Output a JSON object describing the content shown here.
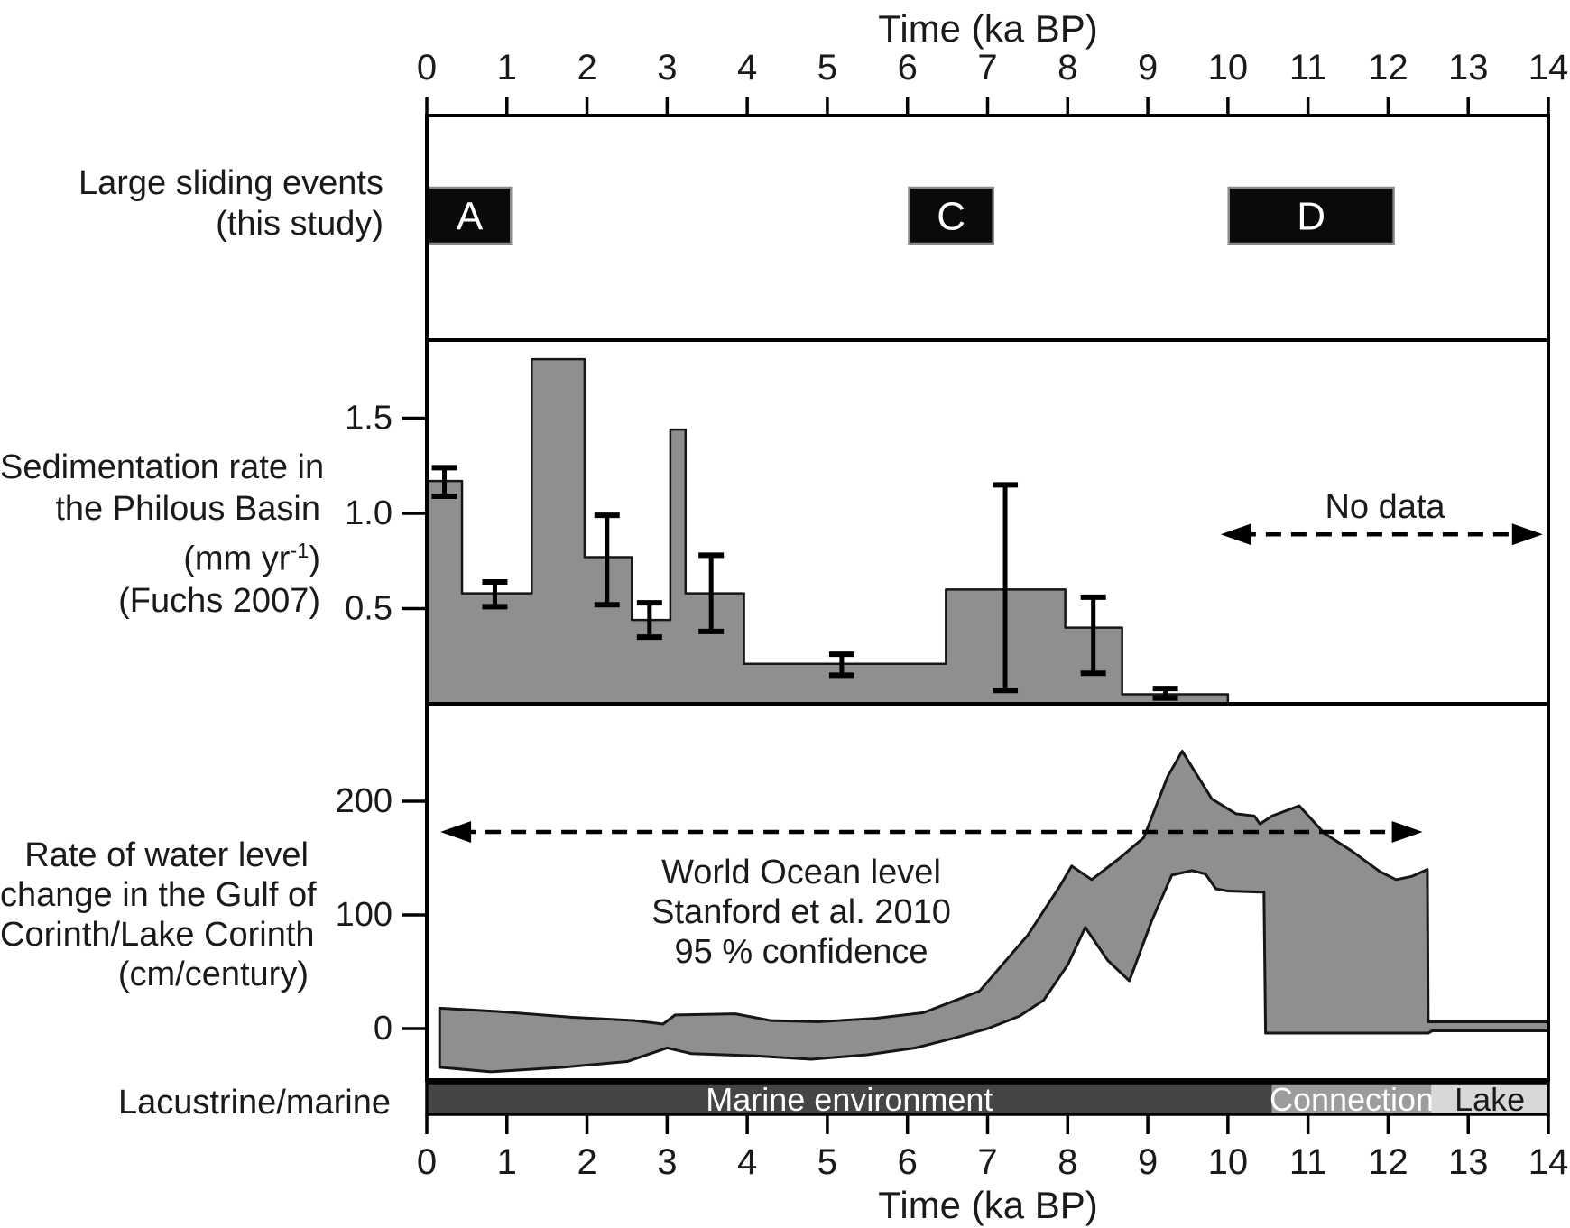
{
  "title_top": "Time (ka BP)",
  "title_bottom": "Time (ka BP)",
  "x_tick_labels": [
    "0",
    "1",
    "2",
    "3",
    "4",
    "5",
    "6",
    "7",
    "8",
    "9",
    "10",
    "11",
    "12",
    "13",
    "14"
  ],
  "labels": {
    "sliding": [
      "Large sliding events",
      "(this study)"
    ],
    "sedimentation": [
      "Sedimentation rate in",
      "the Philous Basin",
      "(mm yr⁻¹)",
      "(Fuchs 2007)"
    ],
    "sedimentation_unit": {
      "pre": "(mm yr",
      "sup": "-1",
      "post": ")"
    },
    "water": [
      "Rate of water level",
      "change in the Gulf of",
      "Corinth/Lake Corinth",
      "(cm/century)"
    ],
    "environment": "Lacustrine/marine"
  },
  "colors": {
    "fill_gray": "#8f8f8f",
    "outline": "#161616",
    "event_box": "#0a0a0a",
    "event_box_edge": "#8a8a8a",
    "marine": "#454545",
    "connection": "#9c9c9c",
    "lake": "#d8d8d8",
    "text": "#1a1a1a",
    "white": "#ffffff"
  },
  "chart_data": [
    {
      "type": "event-blocks",
      "title": "Large sliding events (this study)",
      "xlabel": "Time (ka BP)",
      "xlim": [
        0,
        14
      ],
      "events": [
        {
          "label": "A",
          "x_start": 0.02,
          "x_end": 1.05
        },
        {
          "label": "C",
          "x_start": 6.02,
          "x_end": 7.07
        },
        {
          "label": "D",
          "x_start": 10.01,
          "x_end": 12.07
        }
      ]
    },
    {
      "type": "step-area",
      "title": "Sedimentation rate in the Philous Basin (mm yr-1) (Fuchs 2007)",
      "ylabel": "Sedimentation rate (mm yr-1)",
      "xlim": [
        0,
        14
      ],
      "ylim": [
        0,
        1.91
      ],
      "yticks": [
        {
          "v": 0.5,
          "label": "0.5"
        },
        {
          "v": 1.0,
          "label": "1.0"
        },
        {
          "v": 1.5,
          "label": "1.5"
        }
      ],
      "bars": [
        {
          "x_start": 0.0,
          "x_end": 0.44,
          "value": 1.17,
          "err_x": 0.22,
          "err_low": 1.09,
          "err_high": 1.24
        },
        {
          "x_start": 0.44,
          "x_end": 1.31,
          "value": 0.58,
          "err_x": 0.85,
          "err_low": 0.51,
          "err_high": 0.64
        },
        {
          "x_start": 1.31,
          "x_end": 1.97,
          "value": 1.81
        },
        {
          "x_start": 1.97,
          "x_end": 2.56,
          "value": 0.77,
          "err_x": 2.25,
          "err_low": 0.52,
          "err_high": 0.99
        },
        {
          "x_start": 2.56,
          "x_end": 3.04,
          "value": 0.44,
          "err_x": 2.78,
          "err_low": 0.35,
          "err_high": 0.53
        },
        {
          "x_start": 3.04,
          "x_end": 3.23,
          "value": 1.44
        },
        {
          "x_start": 3.23,
          "x_end": 3.96,
          "value": 0.58,
          "err_x": 3.55,
          "err_low": 0.38,
          "err_high": 0.78
        },
        {
          "x_start": 3.96,
          "x_end": 6.48,
          "value": 0.21,
          "err_x": 5.18,
          "err_low": 0.15,
          "err_high": 0.26
        },
        {
          "x_start": 6.48,
          "x_end": 7.97,
          "value": 0.6,
          "err_x": 7.22,
          "err_low": 0.07,
          "err_high": 1.15
        },
        {
          "x_start": 7.97,
          "x_end": 8.68,
          "value": 0.4,
          "err_x": 8.32,
          "err_low": 0.16,
          "err_high": 0.56
        },
        {
          "x_start": 8.68,
          "x_end": 10.0,
          "value": 0.05,
          "err_x": 9.22,
          "err_low": 0.03,
          "err_high": 0.08
        }
      ],
      "no_data": {
        "label": "No data",
        "arrow": {
          "x_start": 9.91,
          "x_end": 13.93,
          "y": 0.89
        },
        "label_pos": {
          "x": 11.95,
          "y": 1.03
        }
      }
    },
    {
      "type": "band",
      "title": "Rate of water level change in the Gulf of Corinth/Lake Corinth (cm/century)",
      "ylabel": "Rate of water level change (cm/century)",
      "xlim": [
        0,
        14
      ],
      "ylim": [
        -45,
        285
      ],
      "yticks": [
        {
          "v": 0,
          "label": "0"
        },
        {
          "v": 100,
          "label": "100"
        },
        {
          "v": 200,
          "label": "200"
        }
      ],
      "annotation": {
        "lines": [
          "World Ocean level",
          "Stanford et al. 2010",
          "95 % confidence"
        ],
        "x": 4.67,
        "y_values": [
          137,
          103,
          67
        ]
      },
      "arrow": {
        "x_start": 0.17,
        "x_end": 12.43,
        "y": 173
      },
      "upper": [
        [
          0.16,
          18
        ],
        [
          0.9,
          15
        ],
        [
          1.8,
          10
        ],
        [
          2.6,
          7
        ],
        [
          2.95,
          4
        ],
        [
          3.1,
          12
        ],
        [
          3.85,
          13
        ],
        [
          4.3,
          7
        ],
        [
          4.9,
          6
        ],
        [
          5.6,
          9
        ],
        [
          6.2,
          14
        ],
        [
          6.9,
          33
        ],
        [
          7.5,
          82
        ],
        [
          7.9,
          125
        ],
        [
          8.05,
          143
        ],
        [
          8.3,
          131
        ],
        [
          8.65,
          150
        ],
        [
          8.95,
          168
        ],
        [
          9.25,
          222
        ],
        [
          9.43,
          244
        ],
        [
          9.8,
          202
        ],
        [
          10.1,
          189
        ],
        [
          10.33,
          187
        ],
        [
          10.4,
          180
        ],
        [
          10.55,
          187
        ],
        [
          10.89,
          196
        ],
        [
          11.2,
          172
        ],
        [
          11.55,
          156
        ],
        [
          11.9,
          138
        ],
        [
          12.1,
          131
        ],
        [
          12.3,
          134
        ],
        [
          12.49,
          140
        ],
        [
          12.5,
          6
        ],
        [
          14,
          6
        ]
      ],
      "lower": [
        [
          0.16,
          -34
        ],
        [
          0.8,
          -38
        ],
        [
          1.7,
          -34
        ],
        [
          2.5,
          -29
        ],
        [
          3.0,
          -17
        ],
        [
          3.3,
          -22
        ],
        [
          4.1,
          -24
        ],
        [
          4.8,
          -27
        ],
        [
          5.5,
          -23
        ],
        [
          6.1,
          -17
        ],
        [
          6.6,
          -8
        ],
        [
          7.0,
          0
        ],
        [
          7.4,
          11
        ],
        [
          7.7,
          25
        ],
        [
          8.0,
          56
        ],
        [
          8.22,
          89
        ],
        [
          8.5,
          60
        ],
        [
          8.77,
          42
        ],
        [
          9.05,
          95
        ],
        [
          9.3,
          135
        ],
        [
          9.55,
          139
        ],
        [
          9.72,
          136
        ],
        [
          9.85,
          123
        ],
        [
          10.0,
          121
        ],
        [
          10.45,
          120
        ],
        [
          10.47,
          -4
        ],
        [
          12.5,
          -4
        ],
        [
          12.55,
          -2
        ],
        [
          14,
          -2
        ]
      ]
    },
    {
      "type": "category-strip",
      "label": "Lacustrine/marine",
      "xlim": [
        0,
        14
      ],
      "segments": [
        {
          "label": "Marine environment",
          "x_start": 0,
          "x_end": 10.55,
          "color_key": "marine",
          "text_color_key": "white"
        },
        {
          "label": "Connection",
          "x_start": 10.55,
          "x_end": 12.54,
          "color_key": "connection",
          "text_color_key": "white"
        },
        {
          "label": "Lake",
          "x_start": 12.54,
          "x_end": 14,
          "color_key": "lake",
          "text_color_key": "text"
        }
      ]
    }
  ]
}
